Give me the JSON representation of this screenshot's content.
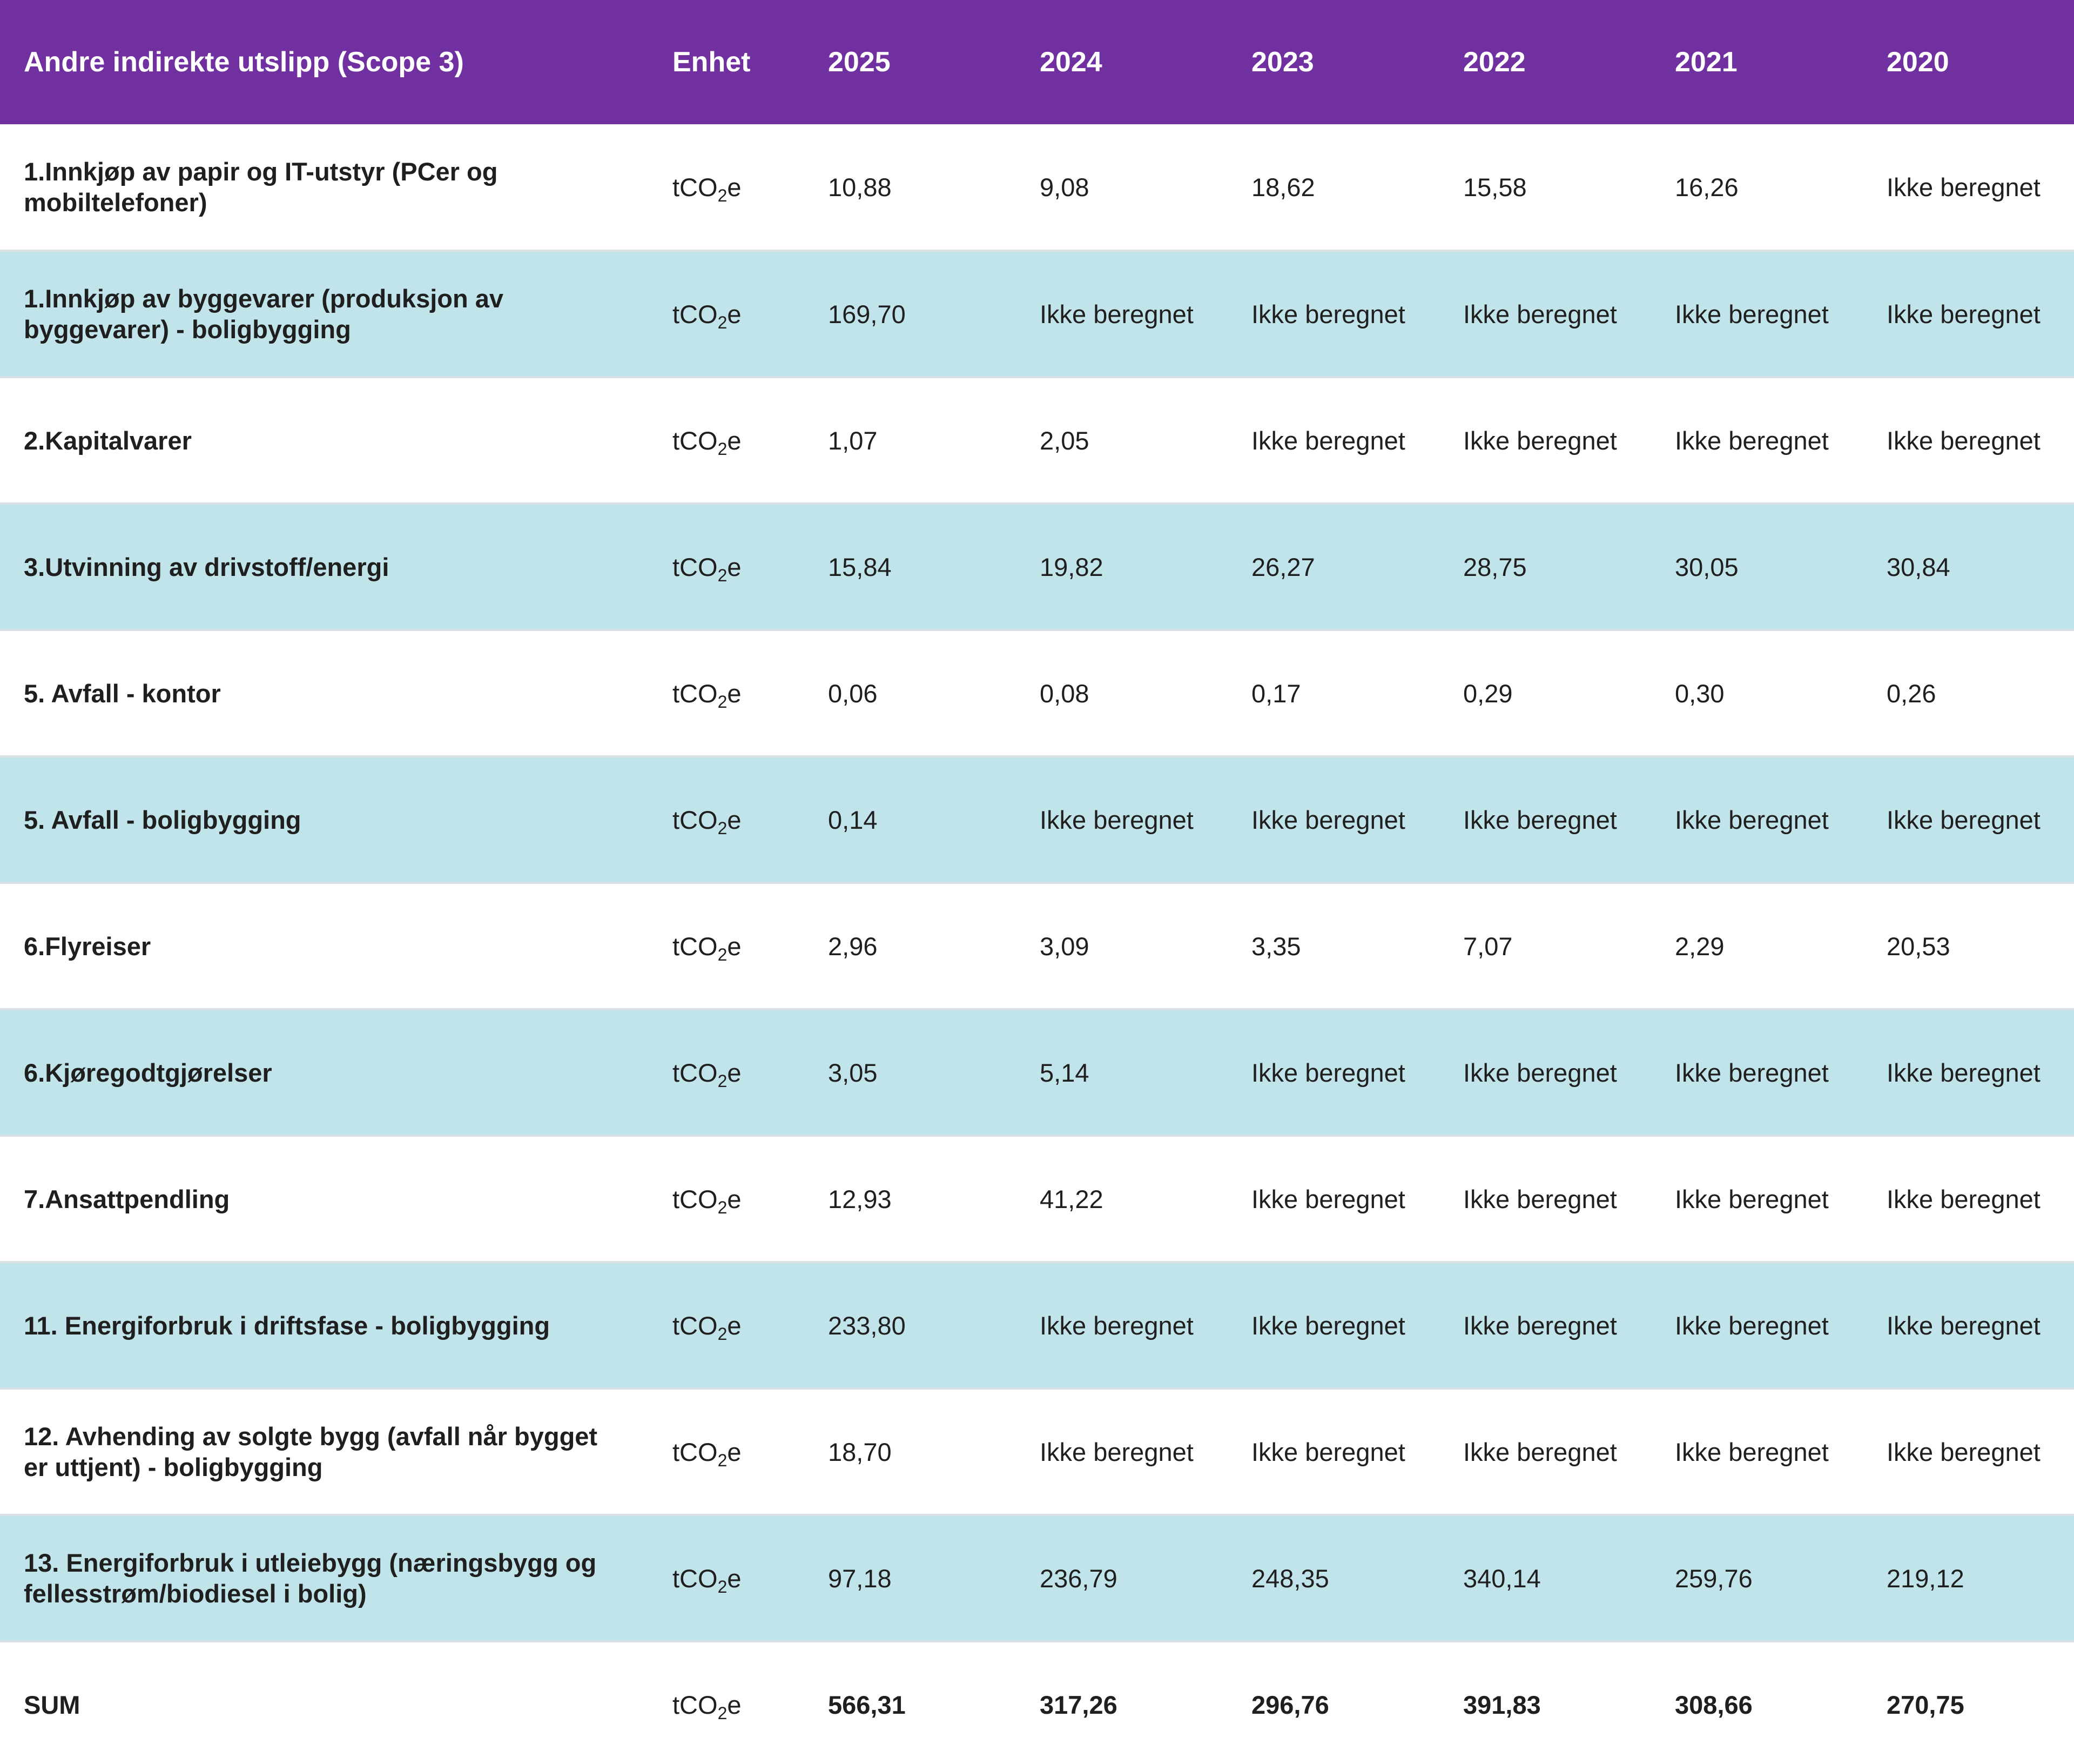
{
  "header": {
    "category": "Andre indirekte utslipp (Scope 3)",
    "unit": "Enhet",
    "years": [
      "2025",
      "2024",
      "2023",
      "2022",
      "2021",
      "2020"
    ]
  },
  "unit": {
    "pre": "tCO",
    "sub": "2",
    "post": "e"
  },
  "rows": [
    {
      "label": "1.Innkjøp av papir og IT-utstyr (PCer og mobiltelefoner)",
      "values": [
        "10,88",
        "9,08",
        "18,62",
        "15,58",
        "16,26",
        "Ikke beregnet"
      ]
    },
    {
      "label": "1.Innkjøp av byggevarer (produksjon av byggevarer) - boligbygging",
      "values": [
        "169,70",
        "Ikke beregnet",
        "Ikke beregnet",
        "Ikke beregnet",
        "Ikke beregnet",
        "Ikke beregnet"
      ]
    },
    {
      "label": "2.Kapitalvarer",
      "values": [
        "1,07",
        "2,05",
        "Ikke beregnet",
        "Ikke beregnet",
        "Ikke beregnet",
        "Ikke beregnet"
      ]
    },
    {
      "label": "3.Utvinning av drivstoff/energi",
      "values": [
        "15,84",
        "19,82",
        "26,27",
        "28,75",
        "30,05",
        "30,84"
      ]
    },
    {
      "label": "5. Avfall - kontor",
      "values": [
        "0,06",
        "0,08",
        "0,17",
        "0,29",
        "0,30",
        "0,26"
      ]
    },
    {
      "label": "5. Avfall - boligbygging",
      "values": [
        "0,14",
        "Ikke beregnet",
        "Ikke beregnet",
        "Ikke beregnet",
        "Ikke beregnet",
        "Ikke beregnet"
      ]
    },
    {
      "label": "6.Flyreiser",
      "values": [
        "2,96",
        "3,09",
        "3,35",
        "7,07",
        "2,29",
        "20,53"
      ]
    },
    {
      "label": "6.Kjøregodtgjørelser",
      "values": [
        "3,05",
        "5,14",
        "Ikke beregnet",
        "Ikke beregnet",
        "Ikke beregnet",
        "Ikke beregnet"
      ]
    },
    {
      "label": "7.Ansattpendling",
      "values": [
        "12,93",
        "41,22",
        "Ikke beregnet",
        "Ikke beregnet",
        "Ikke beregnet",
        "Ikke beregnet"
      ]
    },
    {
      "label": "11. Energiforbruk i driftsfase - boligbygging",
      "values": [
        "233,80",
        "Ikke beregnet",
        "Ikke beregnet",
        "Ikke beregnet",
        "Ikke beregnet",
        "Ikke beregnet"
      ]
    },
    {
      "label": "12. Avhending av solgte bygg (avfall når bygget er uttjent) - boligbygging",
      "values": [
        "18,70",
        "Ikke beregnet",
        "Ikke beregnet",
        "Ikke beregnet",
        "Ikke beregnet",
        "Ikke beregnet"
      ]
    },
    {
      "label": "13. Energiforbruk i utleiebygg (næringsbygg og fellesstrøm/biodiesel i bolig)",
      "values": [
        "97,18",
        "236,79",
        "248,35",
        "340,14",
        "259,76",
        "219,12"
      ]
    },
    {
      "label": "SUM",
      "values": [
        "566,31",
        "317,26",
        "296,76",
        "391,83",
        "308,66",
        "270,75"
      ]
    }
  ],
  "colors": {
    "header_bg": "#7030a0",
    "header_text": "#ffffff",
    "row_alt_bg": "#c1e4ea",
    "row_bg": "#ffffff",
    "text": "#1f1f1f"
  }
}
